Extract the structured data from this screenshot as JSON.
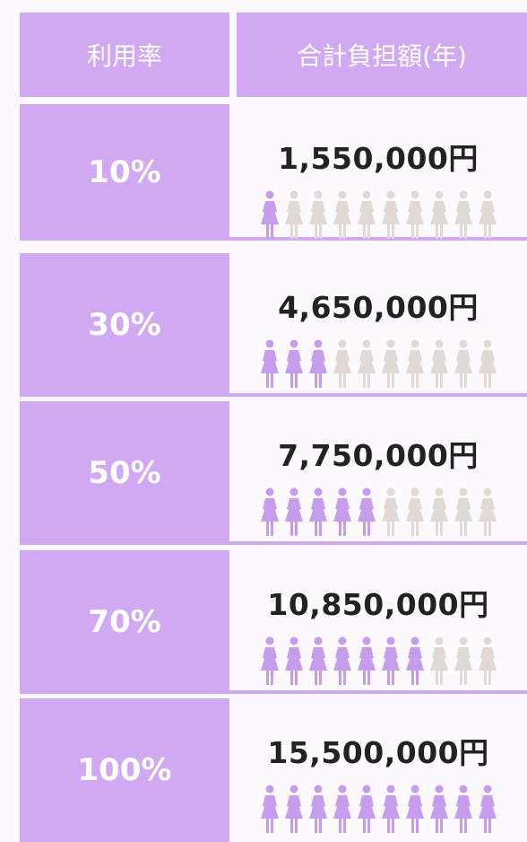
{
  "table": {
    "header": [
      "利用率",
      "合計負担額(年)"
    ],
    "rows": [
      {
        "rate": {
          "value": 10,
          "label": "10%"
        },
        "total": "1,550,000円"
      },
      {
        "rate": {
          "value": 30,
          "label": "30%"
        },
        "total": "4,650,000円"
      },
      {
        "rate": {
          "value": 50,
          "label": "50%"
        },
        "total": "7,750,000円"
      },
      {
        "rate": {
          "value": 70,
          "label": "70%"
        },
        "total": "10,850,000円"
      },
      {
        "rate": {
          "value": 100,
          "label": "100%"
        },
        "total": "15,500,000円"
      }
    ]
  }
}
